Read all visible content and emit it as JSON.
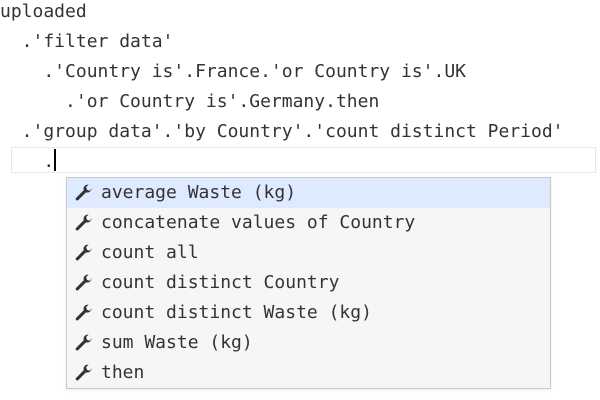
{
  "code_lines": [
    "uploaded",
    "  .'filter data'",
    "    .'Country is'.France.'or Country is'.UK",
    "      .'or Country is'.Germany.then",
    "  .'group data'.'by Country'.'count distinct Period'"
  ],
  "current_input": "    .",
  "autocomplete": {
    "selected_index": 0,
    "icon": "wrench-icon",
    "items": [
      "average Waste (kg)",
      "concatenate values of Country",
      "count all",
      "count distinct Country",
      "count distinct Waste (kg)",
      "sum Waste (kg)",
      "then"
    ]
  },
  "colors": {
    "text": "#333333",
    "selected_bg": "#ddeaff",
    "popup_bg": "#f6f6f6",
    "popup_border": "#c8c8c8"
  }
}
